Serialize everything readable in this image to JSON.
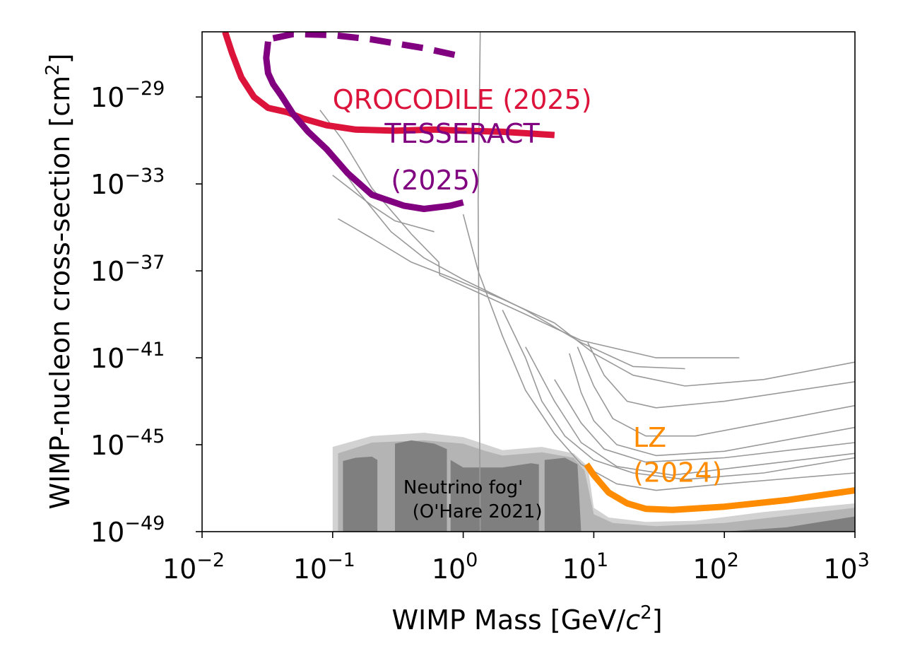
{
  "chart_data": {
    "type": "line",
    "xscale": "log",
    "yscale": "log",
    "xlim": [
      0.01,
      1000
    ],
    "ylim": [
      1e-49,
      1e-26
    ],
    "xlabel": "WIMP Mass [GeV/c²]",
    "xlabel_parts": {
      "prefix": "WIMP Mass [GeV/",
      "italic": "c",
      "sup": "2",
      "suffix": "]"
    },
    "ylabel": "WIMP-nucleon cross-section [cm²]",
    "ylabel_parts": {
      "prefix": "WIMP-nucleon cross-section [cm",
      "sup": "2",
      "suffix": "]"
    },
    "x_ticks": [
      {
        "value": 0.01,
        "base": "10",
        "exp": "−2"
      },
      {
        "value": 0.1,
        "base": "10",
        "exp": "−1"
      },
      {
        "value": 1,
        "base": "10",
        "exp": "0"
      },
      {
        "value": 10,
        "base": "10",
        "exp": "1"
      },
      {
        "value": 100,
        "base": "10",
        "exp": "2"
      },
      {
        "value": 1000,
        "base": "10",
        "exp": "3"
      }
    ],
    "y_ticks": [
      {
        "value": 1e-29,
        "base": "10",
        "exp": "−29"
      },
      {
        "value": 1e-33,
        "base": "10",
        "exp": "−33"
      },
      {
        "value": 1e-37,
        "base": "10",
        "exp": "−37"
      },
      {
        "value": 1e-41,
        "base": "10",
        "exp": "−41"
      },
      {
        "value": 1e-45,
        "base": "10",
        "exp": "−45"
      },
      {
        "value": 1e-49,
        "base": "10",
        "exp": "−49"
      }
    ],
    "neutrino_fog": {
      "label_line1": "Neutrino fog'",
      "label_line2": "(O'Hare 2021)",
      "label_at": [
        1.0,
        -47.25
      ],
      "color_light": "#d2d2d2",
      "color_mid": "#b4b4b4",
      "color_dark": "#7f7f7f",
      "light_boundary": [
        [
          0.1,
          -48.8
        ],
        [
          0.1,
          -45.1
        ],
        [
          0.2,
          -44.6
        ],
        [
          0.5,
          -44.45
        ],
        [
          1.0,
          -44.65
        ],
        [
          1.5,
          -45.0
        ],
        [
          2.0,
          -45.25
        ],
        [
          4.0,
          -45.1
        ],
        [
          7.0,
          -45.4
        ],
        [
          9.0,
          -46.0
        ],
        [
          10.0,
          -47.9
        ],
        [
          13.0,
          -48.35
        ],
        [
          25.0,
          -48.55
        ],
        [
          60.0,
          -48.5
        ],
        [
          200.0,
          -48.1
        ],
        [
          1000.0,
          -47.7
        ],
        [
          1000.0,
          -49.0
        ],
        [
          0.1,
          -49.0
        ]
      ],
      "mid_boundary": [
        [
          0.11,
          -48.9
        ],
        [
          0.11,
          -45.4
        ],
        [
          0.2,
          -44.9
        ],
        [
          0.5,
          -44.8
        ],
        [
          1.0,
          -44.95
        ],
        [
          1.5,
          -45.3
        ],
        [
          2.0,
          -45.5
        ],
        [
          4.0,
          -45.35
        ],
        [
          7.0,
          -45.6
        ],
        [
          8.5,
          -46.2
        ],
        [
          10.0,
          -48.2
        ],
        [
          14.0,
          -48.6
        ],
        [
          30.0,
          -48.75
        ],
        [
          100.0,
          -48.6
        ],
        [
          1000.0,
          -47.9
        ],
        [
          1000.0,
          -49.0
        ],
        [
          0.11,
          -49.0
        ]
      ],
      "dark_regions": [
        [
          [
            0.12,
            -49.0
          ],
          [
            0.12,
            -45.75
          ],
          [
            0.15,
            -45.6
          ],
          [
            0.2,
            -45.55
          ],
          [
            0.22,
            -45.7
          ],
          [
            0.22,
            -49.0
          ]
        ],
        [
          [
            0.3,
            -49.0
          ],
          [
            0.3,
            -44.95
          ],
          [
            0.4,
            -44.8
          ],
          [
            0.6,
            -44.95
          ],
          [
            0.75,
            -45.2
          ],
          [
            0.75,
            -49.0
          ]
        ],
        [
          [
            0.8,
            -49.0
          ],
          [
            0.8,
            -45.7
          ],
          [
            1.0,
            -46.05
          ],
          [
            2.0,
            -46.05
          ],
          [
            3.3,
            -45.85
          ],
          [
            3.8,
            -45.9
          ],
          [
            3.8,
            -49.0
          ]
        ],
        [
          [
            4.2,
            -49.0
          ],
          [
            4.2,
            -45.7
          ],
          [
            6.0,
            -45.6
          ],
          [
            7.5,
            -45.9
          ],
          [
            8.0,
            -49.0
          ]
        ],
        [
          [
            100.0,
            -49.0
          ],
          [
            300.0,
            -48.8
          ],
          [
            1000.0,
            -48.3
          ],
          [
            1000.0,
            -49.0
          ]
        ]
      ]
    },
    "series": [
      {
        "name": "QROCODILE (2025)",
        "color": "#dc143c",
        "width": 9,
        "style": "solid",
        "points": [
          [
            0.015,
            -26.0
          ],
          [
            0.017,
            -27.0
          ],
          [
            0.02,
            -28.1
          ],
          [
            0.025,
            -29.0
          ],
          [
            0.032,
            -29.5
          ],
          [
            0.045,
            -29.7
          ],
          [
            0.06,
            -30.0
          ],
          [
            0.09,
            -30.3
          ],
          [
            0.15,
            -30.5
          ],
          [
            0.3,
            -30.55
          ],
          [
            0.6,
            -30.5
          ],
          [
            1.0,
            -30.55
          ],
          [
            2.0,
            -30.6
          ],
          [
            5.0,
            -30.75
          ]
        ],
        "label_line1": "QROCODILE (2025)",
        "label_line2": "",
        "label_at": [
          0.1,
          -29.55
        ],
        "label_at2": [
          0.1,
          -29.55
        ]
      },
      {
        "name": "TESSERACT (2025)",
        "color": "#800080",
        "width": 9,
        "style": "solid",
        "points": [
          [
            0.032,
            -26.45
          ],
          [
            0.031,
            -27.2
          ],
          [
            0.032,
            -27.9
          ],
          [
            0.035,
            -28.4
          ],
          [
            0.04,
            -28.9
          ],
          [
            0.05,
            -29.8
          ],
          [
            0.065,
            -30.6
          ],
          [
            0.09,
            -31.4
          ],
          [
            0.13,
            -32.5
          ],
          [
            0.2,
            -33.5
          ],
          [
            0.35,
            -34.0
          ],
          [
            0.5,
            -34.15
          ],
          [
            0.8,
            -34.0
          ],
          [
            1.0,
            -33.85
          ]
        ],
        "label_line1": "TESSERACT",
        "label_line2": "(2025)",
        "label_at": [
          0.25,
          -31.1
        ],
        "label_at2": [
          0.28,
          -33.25
        ]
      },
      {
        "name": "TESSERACT projection",
        "color": "#800080",
        "width": 9,
        "style": "dashed",
        "points": [
          [
            0.035,
            -26.3
          ],
          [
            0.05,
            -26.1
          ],
          [
            0.1,
            -26.15
          ],
          [
            0.2,
            -26.35
          ],
          [
            0.5,
            -26.75
          ],
          [
            1.0,
            -27.15
          ]
        ],
        "label_line1": "",
        "label_line2": "",
        "label_at": [
          1,
          -27
        ],
        "label_at2": [
          1,
          -27
        ]
      },
      {
        "name": "LZ (2024)",
        "color": "#ff8c00",
        "width": 9,
        "style": "solid",
        "points": [
          [
            8.8,
            -45.9
          ],
          [
            10.0,
            -46.4
          ],
          [
            13.0,
            -47.2
          ],
          [
            18.0,
            -47.7
          ],
          [
            25.0,
            -47.95
          ],
          [
            40.0,
            -48.0
          ],
          [
            100.0,
            -47.85
          ],
          [
            300.0,
            -47.55
          ],
          [
            1000.0,
            -47.1
          ]
        ],
        "label_line1": "LZ",
        "label_line2": "(2024)",
        "label_at": [
          20.0,
          -45.1
        ],
        "label_at2": [
          20.0,
          -46.7
        ]
      }
    ],
    "other_limits": [
      {
        "points": [
          [
            0.08,
            -29.6
          ],
          [
            0.12,
            -31.0
          ],
          [
            0.2,
            -33.2
          ],
          [
            0.4,
            -35.3
          ],
          [
            0.65,
            -36.6
          ],
          [
            0.66,
            -37.2
          ],
          [
            1.3,
            -38.0
          ],
          [
            3.0,
            -39.0
          ],
          [
            8.0,
            -40.2
          ],
          [
            30.0,
            -41.0
          ],
          [
            130.0,
            -41.0
          ]
        ]
      },
      {
        "points": [
          [
            0.09,
            -31.3
          ],
          [
            0.15,
            -33.2
          ],
          [
            0.28,
            -35.2
          ],
          [
            0.5,
            -36.4
          ],
          [
            1.0,
            -37.4
          ],
          [
            3.0,
            -38.8
          ],
          [
            8.0,
            -40.3
          ],
          [
            20.0,
            -41.4
          ],
          [
            50.0,
            -41.5
          ]
        ]
      },
      {
        "points": [
          [
            0.1,
            -32.6
          ],
          [
            0.2,
            -34.0
          ],
          [
            0.3,
            -34.7
          ],
          [
            0.6,
            -35.2
          ]
        ]
      },
      {
        "points": [
          [
            0.11,
            -34.6
          ],
          [
            0.2,
            -35.5
          ],
          [
            0.4,
            -36.6
          ],
          [
            0.8,
            -37.3
          ],
          [
            2.0,
            -38.3
          ],
          [
            5.0,
            -39.4
          ],
          [
            10.0,
            -40.8
          ],
          [
            20.0,
            -41.8
          ],
          [
            50.0,
            -42.3
          ],
          [
            200.0,
            -42.0
          ],
          [
            1000.0,
            -41.2
          ]
        ]
      },
      {
        "points": [
          [
            1.35,
            -26.0
          ],
          [
            1.3,
            -33.8
          ],
          [
            1.35,
            -49.0
          ]
        ]
      },
      {
        "points": [
          [
            1.0,
            -34.4
          ],
          [
            1.3,
            -37.0
          ],
          [
            2.0,
            -40.0
          ],
          [
            3.0,
            -42.5
          ],
          [
            5.0,
            -44.5
          ],
          [
            8.0,
            -45.9
          ],
          [
            15.0,
            -46.8
          ],
          [
            30.0,
            -47.1
          ],
          [
            100.0,
            -46.8
          ],
          [
            1000.0,
            -46.3
          ]
        ]
      },
      {
        "points": [
          [
            2.0,
            -38.8
          ],
          [
            3.0,
            -41.0
          ],
          [
            4.0,
            -43.0
          ],
          [
            6.0,
            -44.6
          ],
          [
            10.0,
            -45.7
          ],
          [
            20.0,
            -46.3
          ],
          [
            50.0,
            -46.6
          ],
          [
            200.0,
            -46.3
          ],
          [
            1000.0,
            -45.6
          ]
        ]
      },
      {
        "points": [
          [
            3.0,
            -40.5
          ],
          [
            5.0,
            -43.0
          ],
          [
            8.0,
            -44.9
          ],
          [
            15.0,
            -46.0
          ],
          [
            40.0,
            -46.4
          ],
          [
            200.0,
            -45.9
          ],
          [
            1000.0,
            -45.4
          ]
        ]
      },
      {
        "points": [
          [
            5.0,
            -42.0
          ],
          [
            8.0,
            -44.0
          ],
          [
            12.0,
            -45.2
          ],
          [
            25.0,
            -45.8
          ],
          [
            100.0,
            -45.6
          ],
          [
            1000.0,
            -44.9
          ]
        ]
      },
      {
        "points": [
          [
            6.5,
            -40.8
          ],
          [
            8.0,
            -42.6
          ],
          [
            10.0,
            -43.9
          ],
          [
            15.0,
            -45.0
          ],
          [
            30.0,
            -45.5
          ],
          [
            100.0,
            -45.3
          ],
          [
            1000.0,
            -44.2
          ]
        ]
      },
      {
        "points": [
          [
            7.5,
            -40.5
          ],
          [
            10.0,
            -42.3
          ],
          [
            14.0,
            -43.8
          ],
          [
            25.0,
            -44.6
          ],
          [
            60.0,
            -44.6
          ],
          [
            200.0,
            -44.0
          ],
          [
            1000.0,
            -43.2
          ]
        ]
      },
      {
        "points": [
          [
            9.0,
            -40.3
          ],
          [
            12.0,
            -41.8
          ],
          [
            18.0,
            -43.0
          ],
          [
            30.0,
            -43.3
          ],
          [
            100.0,
            -43.0
          ],
          [
            1000.0,
            -42.1
          ]
        ]
      }
    ]
  }
}
